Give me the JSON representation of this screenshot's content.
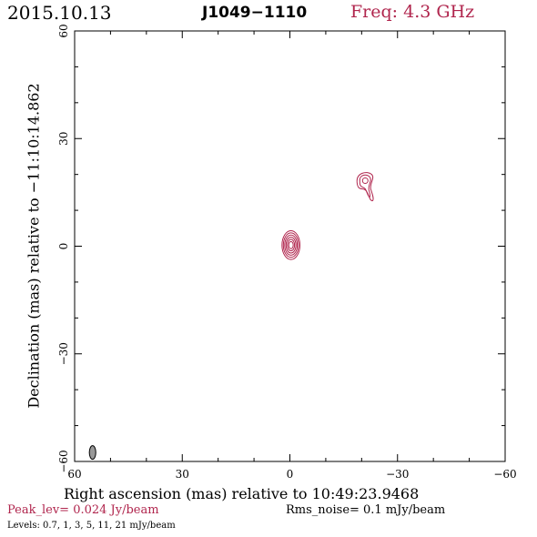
{
  "header": {
    "date": "2015.10.13",
    "source": "J1049−1110",
    "frequency": "Freq: 4.3 GHz"
  },
  "axes": {
    "xlabel": "Right ascension (mas) relative to 10:49:23.9468",
    "ylabel": "Declination (mas) relative to −11:10:14.862",
    "x_ticks": [
      "60",
      "30",
      "0",
      "−30",
      "−60"
    ],
    "y_ticks": [
      "60",
      "30",
      "0",
      "−30",
      "−60"
    ]
  },
  "footer": {
    "peak": "Peak_lev=  0.024 Jy/beam",
    "rms": "Rms_noise=   0.1 mJy/beam",
    "levels": "Levels: 0.7,    1,    3,    5,   11,   21 mJy/beam"
  },
  "chart_data": {
    "type": "contour",
    "xlim": [
      60,
      -60
    ],
    "ylim": [
      -60,
      60
    ],
    "contour_levels_mJy": [
      0.7,
      1,
      3,
      5,
      11,
      21
    ],
    "components": [
      {
        "name": "core",
        "ra_mas": -0.3,
        "dec_mas": 0.3,
        "size_mas": [
          2.5,
          8
        ]
      },
      {
        "name": "jet",
        "ra_mas": -21,
        "dec_mas": 17,
        "size_mas": [
          5,
          9
        ]
      }
    ],
    "beam": {
      "ra_mas": 55,
      "dec_mas": -57.5,
      "major_mas": 3.8,
      "minor_mas": 1.8
    },
    "colors": {
      "contour": "#b0254d",
      "beam": "#999999"
    }
  }
}
